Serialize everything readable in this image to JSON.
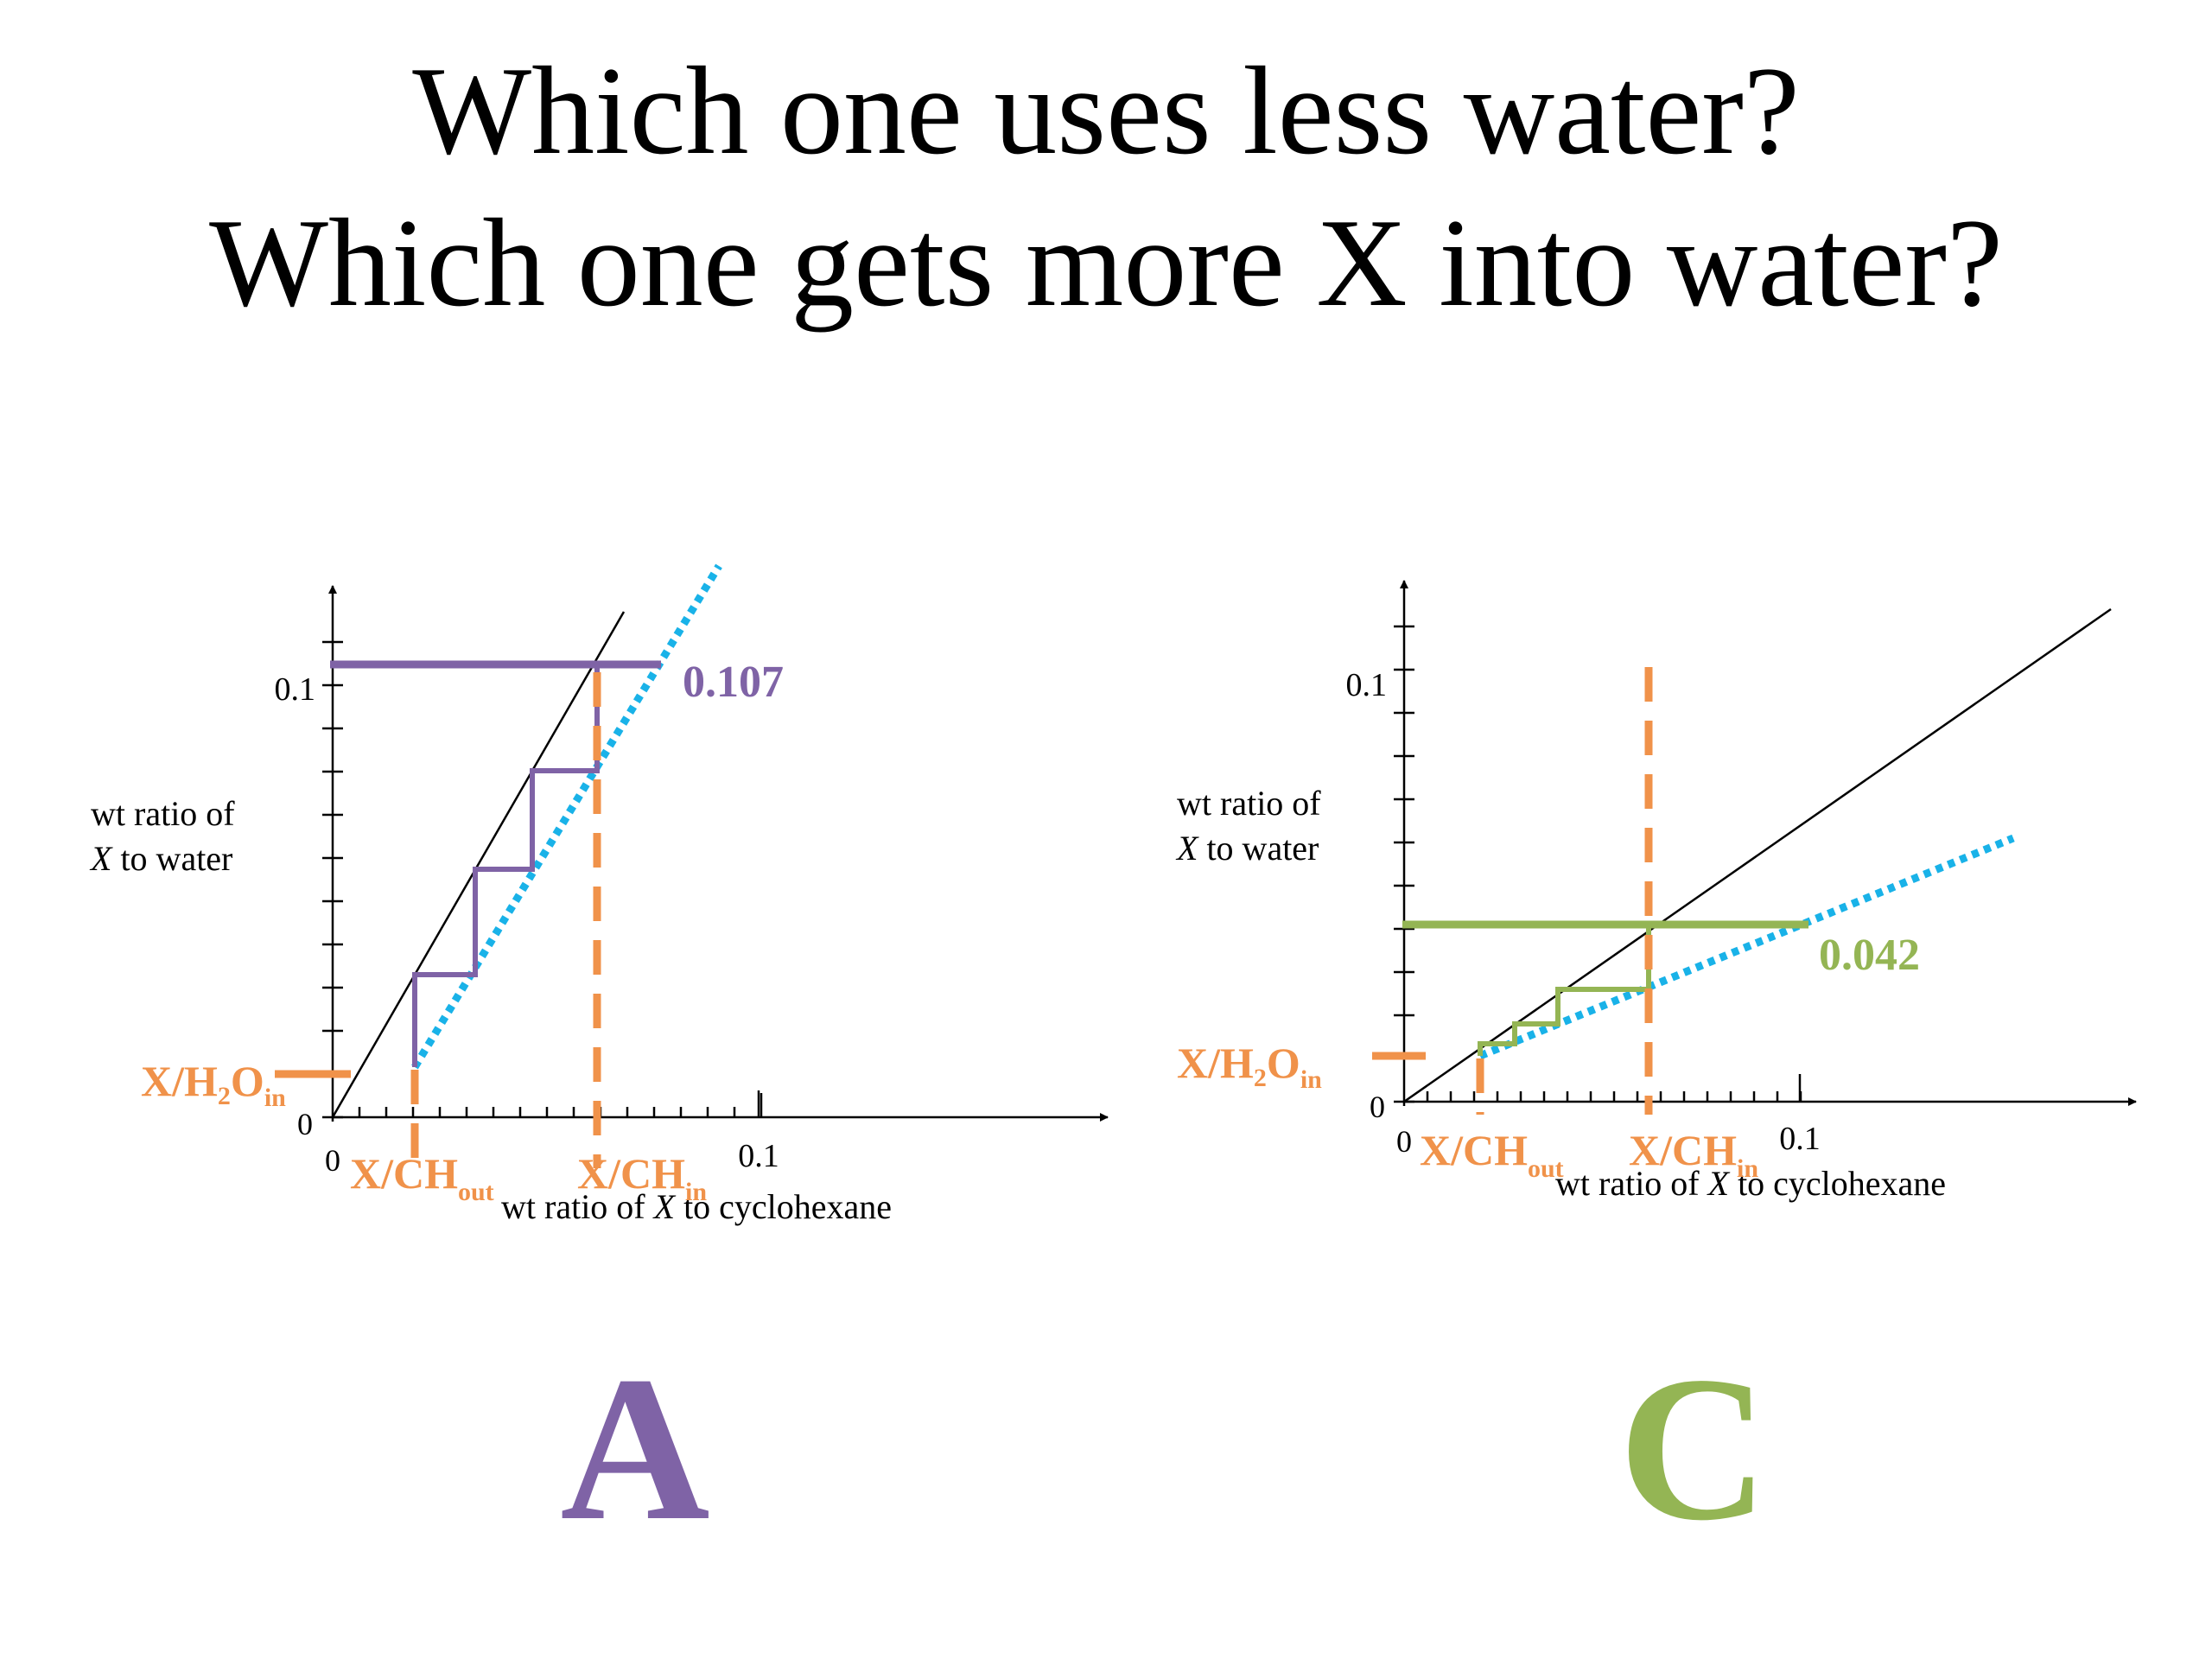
{
  "title": {
    "line1": "Which one uses less water?",
    "line2": "Which one gets more X into water?"
  },
  "colors": {
    "A": "#7f63a6",
    "C": "#94b554",
    "highlight": "#f0924a",
    "operating_line": "#19b2e8",
    "equilibrium": "#000000"
  },
  "panels": [
    {
      "id": "A",
      "letter": "A",
      "ylabel_1": "wt ratio of",
      "ylabel_2": "X to water",
      "ylabel_2_rest": " to water",
      "xlabel": "wt ratio of X to cyclohexane",
      "xlabel_pre": "wt ratio of ",
      "xlabel_rest": " to cyclohexane",
      "ytick_max": "0.1",
      "ytick_zero": "0",
      "xtick_zero": "0",
      "xtick_max": "0.1",
      "x_in_label": "X/H",
      "x_in_sub2": "2",
      "x_in_rest": "O",
      "x_in_sub": "in",
      "ch_out_label": "X/CH",
      "ch_out_sub": "out",
      "ch_in_label": "X/CH",
      "ch_in_sub": "in",
      "value_label": "0.107",
      "value": 0.107
    },
    {
      "id": "C",
      "letter": "C",
      "ylabel_1": "wt ratio of",
      "ylabel_2": "X to water",
      "ylabel_2_rest": " to water",
      "xlabel": "wt ratio of X to cyclohexane",
      "xlabel_pre": "wt ratio of ",
      "xlabel_rest": " to cyclohexane",
      "ytick_max": "0.1",
      "ytick_zero": "0",
      "xtick_zero": "0",
      "xtick_max": "0.1",
      "x_in_label": "X/H",
      "x_in_sub2": "2",
      "x_in_rest": "O",
      "x_in_sub": "in",
      "ch_out_label": "X/CH",
      "ch_out_sub": "out",
      "ch_in_label": "X/CH",
      "ch_in_sub": "in",
      "value_label": "0.042",
      "value": 0.042
    }
  ]
}
